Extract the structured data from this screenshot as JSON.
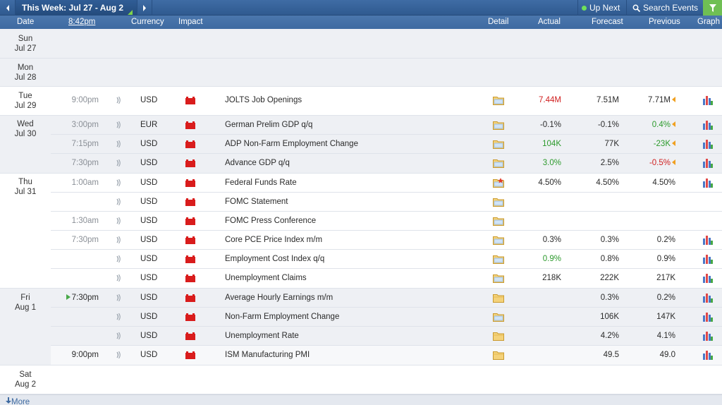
{
  "toolbar": {
    "prev_icon": "chevron-left-icon",
    "week_label": "This Week: Jul 27 - Aug 2",
    "next_icon": "chevron-right-icon",
    "up_next_label": "Up Next",
    "search_label": "Search Events",
    "filter_icon": "filter-icon"
  },
  "header": {
    "date": "Date",
    "time": "8:42pm",
    "currency": "Currency",
    "impact": "Impact",
    "detail": "Detail",
    "actual": "Actual",
    "forecast": "Forecast",
    "previous": "Previous",
    "graph": "Graph"
  },
  "days": [
    {
      "dow": "Sun",
      "date": "Jul 27"
    },
    {
      "dow": "Mon",
      "date": "Jul 28"
    },
    {
      "dow": "Tue",
      "date": "Jul 29"
    },
    {
      "dow": "Wed",
      "date": "Jul 30"
    },
    {
      "dow": "Thu",
      "date": "Jul 31"
    },
    {
      "dow": "Fri",
      "date": "Aug 1"
    },
    {
      "dow": "Sat",
      "date": "Aug 2"
    }
  ],
  "events": [
    {
      "time": "9:00pm",
      "currency": "USD",
      "title": "JOLTS Job Openings",
      "actual": "7.44M",
      "actual_color": "red",
      "forecast": "7.51M",
      "previous": "7.71M",
      "previous_color": "",
      "revised": true,
      "graph": true
    },
    {
      "time": "3:00pm",
      "currency": "EUR",
      "title": "German Prelim GDP q/q",
      "actual": "-0.1%",
      "actual_color": "",
      "forecast": "-0.1%",
      "previous": "0.4%",
      "previous_color": "green",
      "revised": true,
      "graph": true
    },
    {
      "time": "7:15pm",
      "currency": "USD",
      "title": "ADP Non-Farm Employment Change",
      "actual": "104K",
      "actual_color": "green",
      "forecast": "77K",
      "previous": "-23K",
      "previous_color": "green",
      "revised": true,
      "graph": true
    },
    {
      "time": "7:30pm",
      "currency": "USD",
      "title": "Advance GDP q/q",
      "actual": "3.0%",
      "actual_color": "green",
      "forecast": "2.5%",
      "previous": "-0.5%",
      "previous_color": "red",
      "revised": true,
      "graph": true
    },
    {
      "time": "1:00am",
      "currency": "USD",
      "title": "Federal Funds Rate",
      "actual": "4.50%",
      "actual_color": "",
      "forecast": "4.50%",
      "previous": "4.50%",
      "previous_color": "",
      "revised": false,
      "graph": true
    },
    {
      "time": "",
      "currency": "USD",
      "title": "FOMC Statement",
      "actual": "",
      "actual_color": "",
      "forecast": "",
      "previous": "",
      "previous_color": "",
      "revised": false,
      "graph": false
    },
    {
      "time": "1:30am",
      "currency": "USD",
      "title": "FOMC Press Conference",
      "actual": "",
      "actual_color": "",
      "forecast": "",
      "previous": "",
      "previous_color": "",
      "revised": false,
      "graph": false
    },
    {
      "time": "7:30pm",
      "currency": "USD",
      "title": "Core PCE Price Index m/m",
      "actual": "0.3%",
      "actual_color": "",
      "forecast": "0.3%",
      "previous": "0.2%",
      "previous_color": "",
      "revised": false,
      "graph": true
    },
    {
      "time": "",
      "currency": "USD",
      "title": "Employment Cost Index q/q",
      "actual": "0.9%",
      "actual_color": "green",
      "forecast": "0.8%",
      "previous": "0.9%",
      "previous_color": "",
      "revised": false,
      "graph": true
    },
    {
      "time": "",
      "currency": "USD",
      "title": "Unemployment Claims",
      "actual": "218K",
      "actual_color": "",
      "forecast": "222K",
      "previous": "217K",
      "previous_color": "",
      "revised": false,
      "graph": true
    },
    {
      "time": "7:30pm",
      "currency": "USD",
      "title": "Average Hourly Earnings m/m",
      "actual": "",
      "actual_color": "",
      "forecast": "0.3%",
      "previous": "0.2%",
      "previous_color": "",
      "revised": false,
      "graph": true
    },
    {
      "time": "",
      "currency": "USD",
      "title": "Non-Farm Employment Change",
      "actual": "",
      "actual_color": "",
      "forecast": "106K",
      "previous": "147K",
      "previous_color": "",
      "revised": false,
      "graph": true
    },
    {
      "time": "",
      "currency": "USD",
      "title": "Unemployment Rate",
      "actual": "",
      "actual_color": "",
      "forecast": "4.2%",
      "previous": "4.1%",
      "previous_color": "",
      "revised": false,
      "graph": true
    },
    {
      "time": "9:00pm",
      "currency": "USD",
      "title": "ISM Manufacturing PMI",
      "actual": "",
      "actual_color": "",
      "forecast": "49.5",
      "previous": "49.0",
      "previous_color": "",
      "revised": false,
      "graph": true
    }
  ],
  "more_label": "More",
  "colors": {
    "toolbar": "#2f5a90",
    "header": "#4b77ad",
    "red": "#d02020",
    "green": "#2c9a2c",
    "impact_high": "#d91c1c",
    "filter": "#6fbf54"
  }
}
